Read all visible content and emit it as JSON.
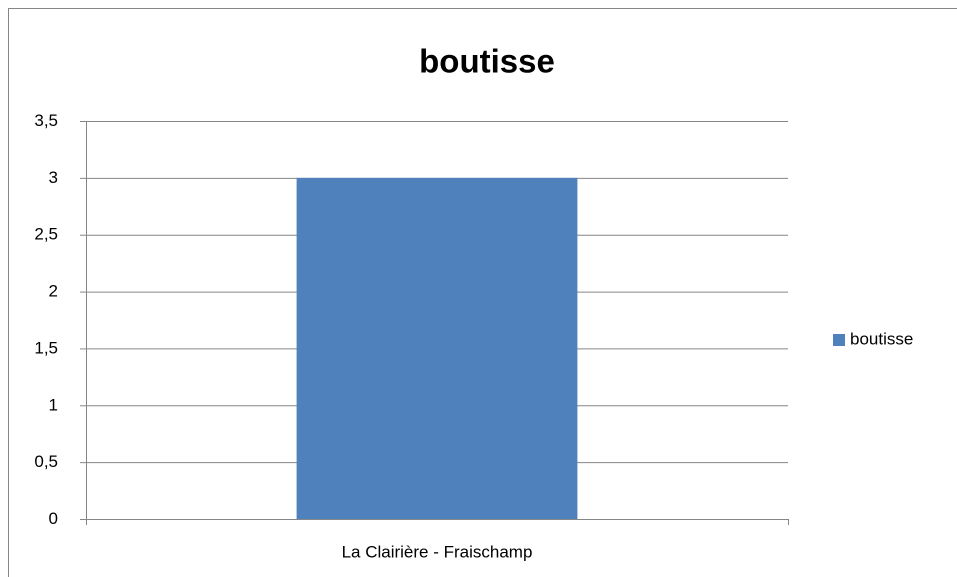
{
  "chart_data": {
    "type": "bar",
    "title": "boutisse",
    "categories": [
      "La Clairière - Fraischamp"
    ],
    "series": [
      {
        "name": "boutisse",
        "color": "#4f81bd",
        "values": [
          3
        ]
      }
    ],
    "ylim": [
      0,
      3.5
    ],
    "yticks": [
      0,
      {
        "value": 0.5,
        "label": "0,5"
      },
      1,
      {
        "value": 1.5,
        "label": "1,5"
      },
      2,
      {
        "value": 2.5,
        "label": "2,5"
      },
      3,
      {
        "value": 3.5,
        "label": "3,5"
      }
    ],
    "grid": true,
    "legend": "right"
  }
}
